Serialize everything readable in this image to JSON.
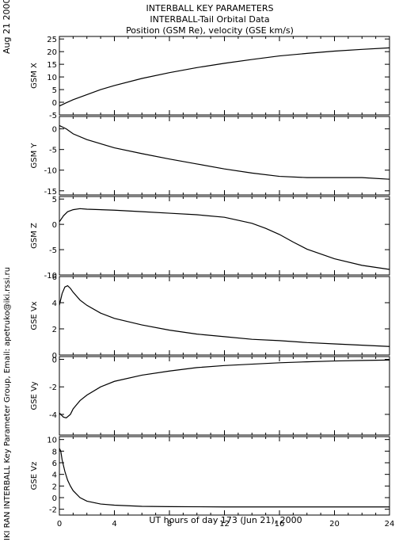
{
  "header": {
    "title": "INTERBALL KEY PARAMETERS",
    "subtitle": "INTERBALL-Tail Orbital Data",
    "units": "Position (GSM Re), velocity (GSE km/s)"
  },
  "side_date": "Aug 21 2000",
  "side_credit": "IKI RAN INTERBALL Key Parameter Group, Email: apetruko@iki.rssi.ru",
  "chart_data": {
    "type": "line",
    "xlabel": "UT hours of day 173 (Jun 21), 2000",
    "xlim": [
      0,
      24
    ],
    "xticks": [
      0,
      4,
      8,
      12,
      16,
      20,
      24
    ],
    "panels": [
      {
        "ylabel": "GSM X",
        "ylim": [
          -5,
          26
        ],
        "yticks": [
          -5,
          0,
          5,
          10,
          15,
          20,
          25
        ],
        "x": [
          0,
          0.5,
          1,
          2,
          3,
          4,
          6,
          8,
          10,
          12,
          14,
          16,
          18,
          20,
          22,
          24
        ],
        "y": [
          -1.5,
          -0.2,
          1.0,
          3.0,
          5.0,
          6.6,
          9.4,
          11.7,
          13.7,
          15.4,
          16.9,
          18.3,
          19.3,
          20.2,
          20.9,
          21.5
        ]
      },
      {
        "ylabel": "GSM Y",
        "ylim": [
          -16,
          3
        ],
        "yticks": [
          -15,
          -10,
          -5,
          0
        ],
        "x": [
          0,
          0.5,
          1,
          2,
          4,
          6,
          8,
          10,
          12,
          14,
          16,
          18,
          20,
          22,
          24
        ],
        "y": [
          0.8,
          0.0,
          -1.2,
          -2.6,
          -4.6,
          -6.0,
          -7.3,
          -8.5,
          -9.7,
          -10.7,
          -11.5,
          -11.8,
          -11.8,
          -11.8,
          -12.2
        ]
      },
      {
        "ylabel": "GSM Z",
        "ylim": [
          -10,
          5.5
        ],
        "yticks": [
          -10,
          -5,
          0,
          5
        ],
        "x": [
          0,
          0.3,
          0.6,
          1,
          1.5,
          2,
          4,
          6,
          8,
          10,
          12,
          14,
          15,
          16,
          17,
          18,
          20,
          22,
          24
        ],
        "y": [
          0.5,
          1.7,
          2.5,
          2.9,
          3.1,
          3.0,
          2.8,
          2.5,
          2.2,
          1.9,
          1.4,
          0.2,
          -0.8,
          -2.0,
          -3.5,
          -4.9,
          -6.8,
          -8.1,
          -8.9
        ]
      },
      {
        "ylabel": "GSE Vx",
        "ylim": [
          0,
          6
        ],
        "yticks": [
          0,
          2,
          4,
          6
        ],
        "x": [
          0,
          0.2,
          0.4,
          0.6,
          0.8,
          1,
          1.5,
          2,
          3,
          4,
          6,
          8,
          10,
          12,
          14,
          16,
          18,
          20,
          22,
          24
        ],
        "y": [
          3.8,
          4.7,
          5.2,
          5.3,
          5.1,
          4.8,
          4.2,
          3.8,
          3.2,
          2.8,
          2.3,
          1.9,
          1.6,
          1.4,
          1.2,
          1.1,
          0.95,
          0.85,
          0.75,
          0.65
        ]
      },
      {
        "ylabel": "GSE Vy",
        "ylim": [
          -5.5,
          0.2
        ],
        "yticks": [
          -4,
          -2,
          0
        ],
        "x": [
          0,
          0.3,
          0.5,
          0.8,
          1,
          1.5,
          2,
          3,
          4,
          6,
          8,
          10,
          12,
          14,
          16,
          18,
          20,
          22,
          24
        ],
        "y": [
          -3.9,
          -4.2,
          -4.25,
          -4.0,
          -3.6,
          -3.0,
          -2.6,
          -2.0,
          -1.6,
          -1.15,
          -0.85,
          -0.6,
          -0.45,
          -0.35,
          -0.25,
          -0.18,
          -0.12,
          -0.08,
          -0.05
        ]
      },
      {
        "ylabel": "GSE Vz",
        "ylim": [
          -3,
          10.5
        ],
        "yticks": [
          -2,
          0,
          2,
          4,
          6,
          8,
          10
        ],
        "x": [
          0,
          0.1,
          0.2,
          0.4,
          0.6,
          0.8,
          1,
          1.5,
          2,
          3,
          4,
          6,
          8,
          12,
          16,
          20,
          24
        ],
        "y": [
          8.5,
          8.0,
          6.5,
          4.5,
          3.0,
          2.0,
          1.2,
          0.0,
          -0.6,
          -1.1,
          -1.3,
          -1.5,
          -1.55,
          -1.6,
          -1.6,
          -1.6,
          -1.6
        ]
      }
    ]
  }
}
